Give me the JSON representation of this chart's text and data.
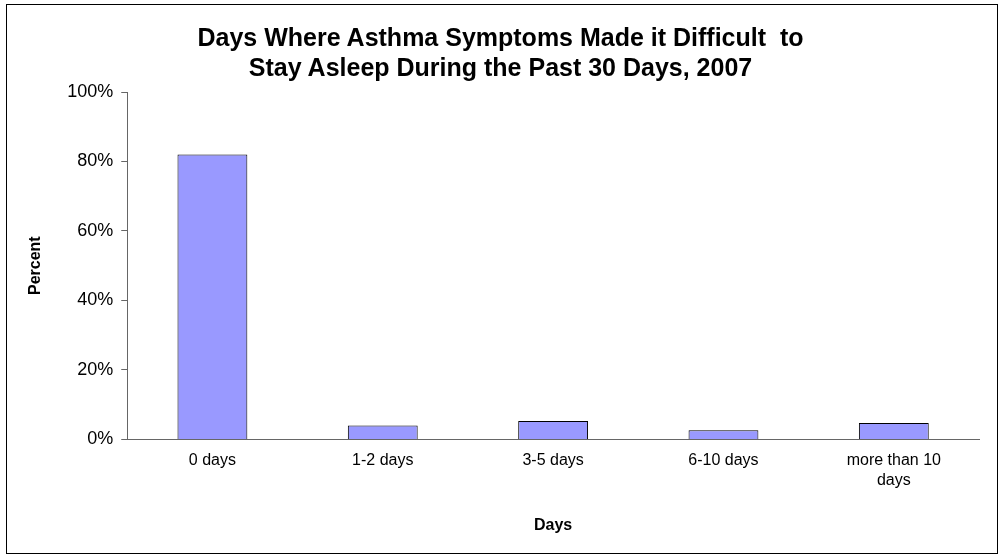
{
  "chart_data": {
    "type": "bar",
    "title": "Days Where Asthma Symptoms Made it Difficult  to Stay Asleep During the Past 30 Days, 2007",
    "xlabel": "Days",
    "ylabel": "Percent",
    "categories": [
      "0 days",
      "1-2 days",
      "3-5 days",
      "6-10 days",
      "more than 10 days"
    ],
    "values": [
      82,
      4,
      5.3,
      2.6,
      4.7
    ],
    "color": "#9999ff",
    "ylim": [
      0,
      100
    ],
    "yticks": [
      {
        "value": 0,
        "label": "0%"
      },
      {
        "value": 20,
        "label": "20%"
      },
      {
        "value": 40,
        "label": "40%"
      },
      {
        "value": 60,
        "label": "60%"
      },
      {
        "value": 80,
        "label": "80%"
      },
      {
        "value": 100,
        "label": "100%"
      }
    ],
    "grid": false,
    "legend": false
  }
}
